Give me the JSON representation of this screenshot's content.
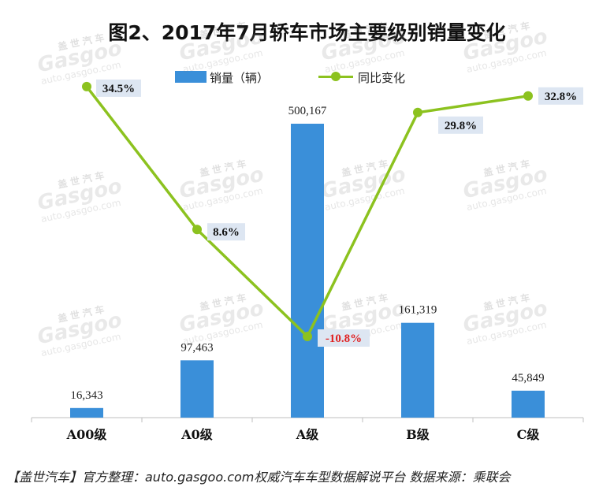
{
  "title": "图2、2017年7月轿车市场主要级别销量变化",
  "footer": "【盖世汽车】官方整理：auto.gasgoo.com权威汽车车型数据解说平台 数据来源：乘联会",
  "watermark": {
    "brand": "盖世汽车",
    "logo": "Gasgoo",
    "url": "auto.gasgoo.com"
  },
  "colors": {
    "bar": "#3a8fd9",
    "line": "#8cc21f",
    "label_bg": "#dde6f2",
    "negative": "#e02020"
  },
  "chart_data": {
    "type": "bar+line",
    "categories": [
      "A00级",
      "A0级",
      "A级",
      "B级",
      "C级"
    ],
    "series": [
      {
        "name": "销量（辆）",
        "type": "bar",
        "values": [
          16343,
          97463,
          500167,
          161319,
          45849
        ],
        "labels": [
          "16,343",
          "97,463",
          "500,167",
          "161,319",
          "45,849"
        ]
      },
      {
        "name": "同比变化",
        "type": "line",
        "values": [
          34.5,
          8.6,
          -10.8,
          29.8,
          32.8
        ],
        "labels": [
          "34.5%",
          "8.6%",
          "-10.8%",
          "29.8%",
          "32.8%"
        ]
      }
    ],
    "legend_position": "top-center",
    "grid": false
  }
}
